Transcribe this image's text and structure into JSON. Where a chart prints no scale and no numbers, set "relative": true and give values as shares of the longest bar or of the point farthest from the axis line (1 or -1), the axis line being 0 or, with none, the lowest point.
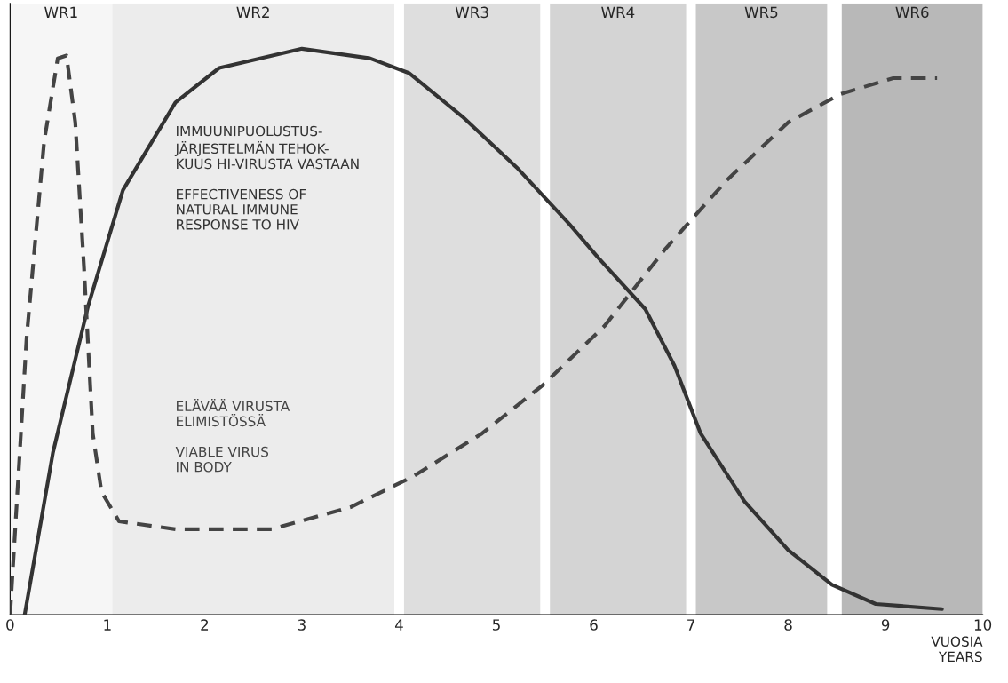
{
  "chart_data": {
    "type": "line",
    "relative": true,
    "xlabel": "VUOSIA\nYEARS",
    "xlim": [
      0,
      10
    ],
    "xticks": [
      0,
      1,
      2,
      3,
      4,
      5,
      6,
      7,
      8,
      9,
      10
    ],
    "grid": false,
    "bands": [
      {
        "axis": "x",
        "from": 0,
        "to": 1.05,
        "label": "WR1",
        "color": "#f6f6f6"
      },
      {
        "axis": "x",
        "from": 1.05,
        "to": 3.95,
        "label": "WR2",
        "color": "#ececec"
      },
      {
        "axis": "x",
        "from": 4.05,
        "to": 5.45,
        "label": "WR3",
        "color": "#dedede"
      },
      {
        "axis": "x",
        "from": 5.55,
        "to": 6.95,
        "label": "WR4",
        "color": "#d4d4d4"
      },
      {
        "axis": "x",
        "from": 7.05,
        "to": 8.4,
        "label": "WR5",
        "color": "#c8c8c8"
      },
      {
        "axis": "x",
        "from": 8.55,
        "to": 10,
        "label": "WR6",
        "color": "#b8b8b8"
      }
    ],
    "series": [
      {
        "name": "IMMUUNIPUOLUSTUS-\nJÄRJESTELMÄN TEHOK-\nKUUS HI-VIRUSTA VASTAAN\n\nEFFECTIVENESS OF\nNATURAL IMMUNE\nRESPONSE TO HIV",
        "color": "#333333",
        "line_style": "solid",
        "x": [
          0.15,
          0.44,
          0.8,
          1.16,
          1.7,
          2.15,
          3.0,
          3.7,
          4.1,
          4.65,
          5.21,
          5.75,
          6.05,
          6.53,
          6.83,
          7.1,
          7.55,
          8.0,
          8.45,
          8.9,
          9.58
        ],
        "values": [
          0,
          0.286,
          0.544,
          0.75,
          0.905,
          0.966,
          1.0,
          0.983,
          0.957,
          0.88,
          0.79,
          0.69,
          0.63,
          0.54,
          0.44,
          0.32,
          0.2,
          0.114,
          0.053,
          0.019,
          0.01
        ]
      },
      {
        "name": "ELÄVÄÄ VIRUSTA\nELIMISTÖSSÄ\n\nVIABLE VIRUS\nIN BODY",
        "color": "#444444",
        "line_style": "dashed",
        "x": [
          0,
          0.17,
          0.35,
          0.49,
          0.58,
          0.67,
          0.76,
          0.85,
          0.94,
          1.12,
          1.7,
          2.69,
          3.5,
          4.13,
          4.85,
          5.48,
          6.11,
          6.74,
          7.37,
          8.0,
          8.54,
          9.08,
          9.53
        ],
        "values": [
          0,
          0.49,
          0.836,
          0.983,
          0.988,
          0.87,
          0.613,
          0.32,
          0.217,
          0.165,
          0.151,
          0.151,
          0.19,
          0.243,
          0.32,
          0.406,
          0.51,
          0.647,
          0.768,
          0.87,
          0.92,
          0.948,
          0.948
        ]
      }
    ]
  }
}
